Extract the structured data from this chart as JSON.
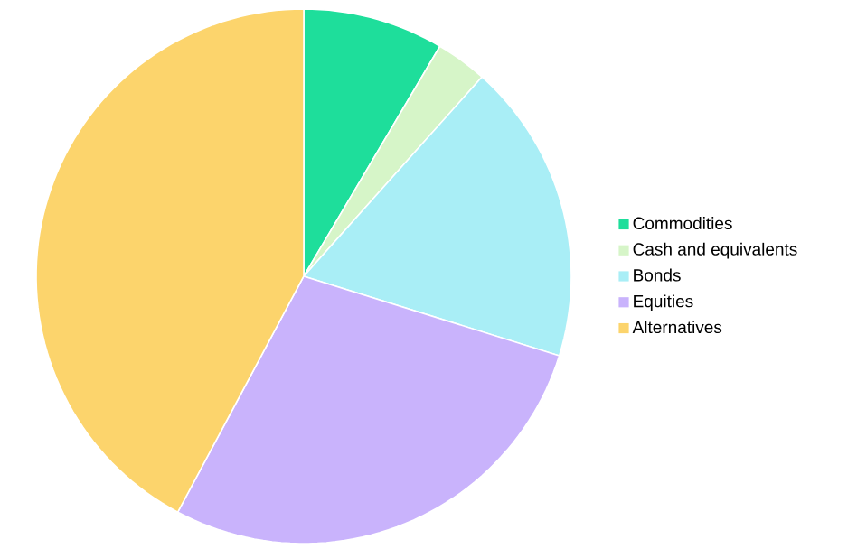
{
  "chart_data": {
    "type": "pie",
    "categories": [
      "Commodities",
      "Cash and equivalents",
      "Bonds",
      "Equities",
      "Alternatives"
    ],
    "values": [
      8.5,
      3.1,
      18.2,
      28,
      42.2
    ],
    "colors": [
      "#1ede9b",
      "#d6f5c8",
      "#a9eef6",
      "#c9b3fc",
      "#fcd46c"
    ],
    "legend": "right"
  }
}
